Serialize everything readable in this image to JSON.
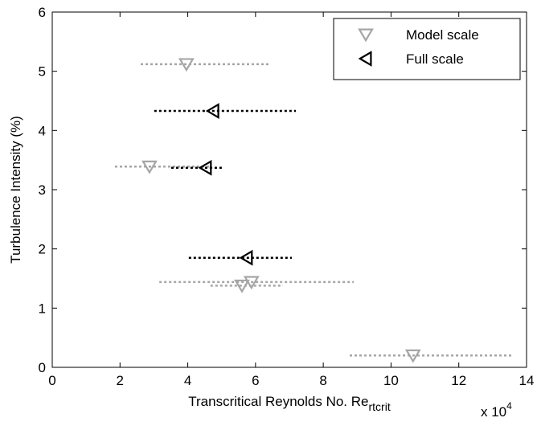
{
  "chart_data": {
    "type": "scatter",
    "xlabel": "Transcritical Reynolds No. Re",
    "xlabel_sub": "rtcrit",
    "x_multiplier": "x 10",
    "x_multiplier_exp": "4",
    "ylabel": "Turbulence Intensity (%)",
    "xlim": [
      0,
      14
    ],
    "xticks": [
      0,
      2,
      4,
      6,
      8,
      10,
      12,
      14
    ],
    "ylim": [
      0,
      6
    ],
    "yticks": [
      0,
      1,
      2,
      3,
      4,
      5,
      6
    ],
    "grid": false,
    "legend": "upper right",
    "series": [
      {
        "name": "Model scale",
        "color": "#a6a6a6",
        "marker": "triangle-down",
        "x": [
          3.96,
          2.87,
          5.88,
          5.6,
          10.65
        ],
        "values": [
          5.12,
          3.39,
          1.44,
          1.38,
          0.2
        ],
        "x_low": [
          2.61,
          1.85,
          3.16,
          4.67,
          8.78
        ],
        "x_high": [
          6.41,
          4.63,
          8.9,
          6.81,
          13.55
        ]
      },
      {
        "name": "Full scale",
        "color": "#000000",
        "marker": "triangle-left",
        "x": [
          4.75,
          4.53,
          5.74
        ],
        "values": [
          4.33,
          3.37,
          1.85
        ],
        "x_low": [
          3.01,
          3.51,
          4.03
        ],
        "x_high": [
          7.19,
          5.01,
          7.07
        ]
      }
    ]
  }
}
